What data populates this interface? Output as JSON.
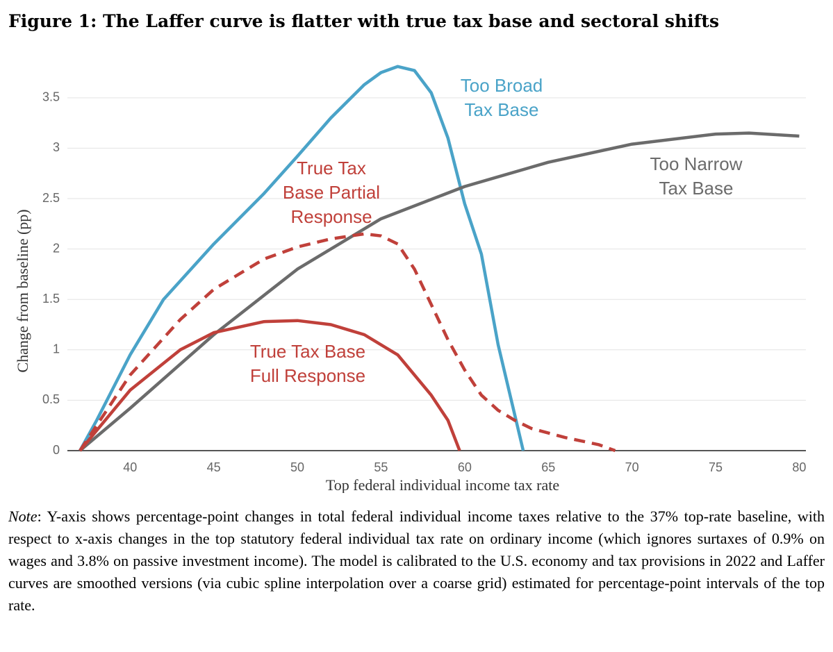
{
  "chart_data": {
    "type": "line",
    "title": "Figure 1: The Laffer curve is flatter with true tax base and sectoral shifts",
    "x_label": "Top federal individual income tax rate",
    "y_label": "Change from baseline (pp)",
    "xlim": [
      36.25,
      80.4
    ],
    "ylim": [
      0,
      3.85
    ],
    "xticks": [
      40,
      45,
      50,
      55,
      60,
      65,
      70,
      75,
      80
    ],
    "yticks": [
      0,
      0.5,
      1,
      1.5,
      2,
      2.5,
      3,
      3.5
    ],
    "grid": true,
    "series": [
      {
        "color": "#4aa3c8",
        "dash": false,
        "x": [
          37,
          38,
          40,
          42,
          45,
          48,
          50,
          52,
          54,
          55,
          56,
          57,
          58,
          59,
          60,
          61,
          62,
          63,
          63.5
        ],
        "values": [
          0,
          0.3,
          0.95,
          1.5,
          2.05,
          2.55,
          2.92,
          3.3,
          3.63,
          3.75,
          3.81,
          3.77,
          3.55,
          3.1,
          2.45,
          1.95,
          1.05,
          0.35,
          0
        ]
      },
      {
        "color": "#6b6b6b",
        "dash": false,
        "x": [
          37,
          40,
          45,
          50,
          55,
          60,
          65,
          70,
          75,
          77,
          80
        ],
        "values": [
          0,
          0.42,
          1.15,
          1.8,
          2.3,
          2.62,
          2.86,
          3.04,
          3.14,
          3.15,
          3.12
        ]
      },
      {
        "color": "#c0403a",
        "dash": false,
        "x": [
          37,
          40,
          43,
          45,
          48,
          50,
          52,
          54,
          56,
          58,
          59,
          59.7
        ],
        "values": [
          0,
          0.6,
          1.0,
          1.17,
          1.28,
          1.29,
          1.25,
          1.15,
          0.95,
          0.55,
          0.3,
          0
        ]
      },
      {
        "color": "#c0403a",
        "dash": true,
        "x": [
          37,
          40,
          43,
          45,
          48,
          50,
          52,
          54,
          55,
          56,
          57,
          58,
          59,
          60,
          61,
          62,
          63,
          64,
          66,
          68,
          69
        ],
        "values": [
          0,
          0.75,
          1.3,
          1.6,
          1.9,
          2.02,
          2.1,
          2.15,
          2.13,
          2.05,
          1.8,
          1.45,
          1.1,
          0.8,
          0.55,
          0.4,
          0.3,
          0.22,
          0.13,
          0.06,
          0
        ]
      }
    ],
    "annotations": [
      {
        "lines": [
          "Too Broad",
          "Tax Base"
        ],
        "color": "#4aa3c8"
      },
      {
        "lines": [
          "Too Narrow",
          "Tax Base"
        ],
        "color": "#6b6b6b"
      },
      {
        "lines": [
          "True Tax",
          "Base Partial",
          "Response"
        ],
        "color": "#c0403a"
      },
      {
        "lines": [
          "True Tax Base",
          "Full Response"
        ],
        "color": "#c0403a"
      }
    ]
  },
  "note": {
    "label": "Note",
    "text": ": Y-axis shows percentage-point changes in total federal individual income taxes relative to the 37% top-rate baseline, with respect to x-axis changes in the top statutory federal individual tax rate on ordinary income (which ignores surtaxes of 0.9% on wages and 3.8% on passive investment income). The model is calibrated to the U.S. economy and tax provisions in 2022 and Laffer curves are smoothed versions (via cubic spline interpolation over a coarse grid) estimated for percentage-point intervals of the top rate."
  }
}
